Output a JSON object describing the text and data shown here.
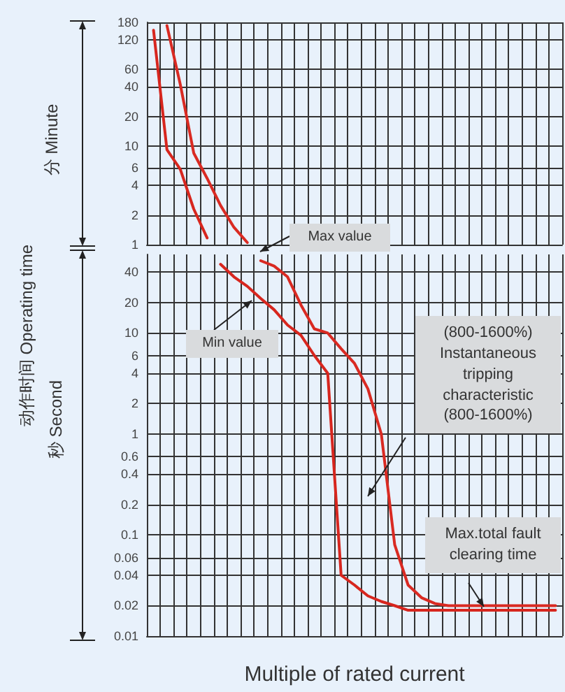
{
  "chart_data": [
    {
      "type": "line",
      "annotations": [
        "分 Minute"
      ],
      "categories": [
        null,
        null,
        null,
        null,
        null,
        null,
        null,
        null,
        null,
        null,
        null,
        null,
        null,
        null,
        null,
        null,
        null,
        null,
        null,
        null,
        null,
        null,
        null,
        null,
        null,
        null,
        null,
        null,
        null,
        null,
        null
      ],
      "series": [
        {
          "color": "#d7261e",
          "values": [
            150,
            9.2,
            5.8,
            2.3,
            1.17,
            null,
            null,
            null,
            null,
            null,
            null,
            null,
            null,
            null,
            null,
            null,
            null,
            null,
            null,
            null,
            null,
            null,
            null,
            null,
            null,
            null,
            null,
            null,
            null,
            null,
            null
          ]
        },
        {
          "color": "#d92a22",
          "values": [
            null,
            167,
            42,
            8.5,
            4.7,
            2.5,
            1.5,
            1.05,
            null,
            null,
            null,
            null,
            null,
            null,
            null,
            null,
            null,
            null,
            null,
            null,
            null,
            null,
            null,
            null,
            null,
            null,
            null,
            null,
            null,
            null,
            null
          ]
        }
      ],
      "log": "y",
      "ylim": [
        1,
        180
      ],
      "yticks": [
        180,
        120,
        60,
        40,
        20,
        10,
        6,
        4,
        2,
        1
      ],
      "grid": true,
      "tick_labels": "y",
      "marker": "none",
      "line_style": "solid"
    },
    {
      "type": "line",
      "xlabel": "Multiple of rated current",
      "ylabel": "动作时间 Operating time",
      "annotations": [
        "秒 Second",
        "Max value",
        "Min value",
        "(800-1600%) Instantaneous tripping characteristic (800-1600%)",
        "Max.total fault clearing time"
      ],
      "categories": [
        null,
        null,
        null,
        null,
        null,
        null,
        null,
        null,
        null,
        null,
        null,
        null,
        null,
        null,
        null,
        null,
        null,
        null,
        null,
        null,
        null,
        null,
        null,
        null,
        null,
        null,
        null,
        null,
        null,
        null,
        null
      ],
      "series": [
        {
          "color": "#d7261e",
          "values": [
            null,
            null,
            null,
            null,
            null,
            48,
            36,
            29,
            22,
            17,
            12,
            9.5,
            6,
            4,
            0.04,
            0.032,
            0.025,
            0.022,
            0.02,
            0.018,
            0.018,
            0.018,
            0.018,
            0.018,
            0.018,
            0.018,
            0.018,
            0.018,
            0.018,
            0.018,
            0.018
          ]
        },
        {
          "color": "#d92a22",
          "values": [
            null,
            null,
            null,
            null,
            null,
            null,
            null,
            null,
            52,
            46,
            36,
            19,
            11,
            10,
            7,
            5,
            2.8,
            1,
            0.08,
            0.032,
            0.024,
            0.021,
            0.02,
            0.02,
            0.02,
            0.02,
            0.02,
            0.02,
            0.02,
            0.02,
            0.02
          ]
        }
      ],
      "log": "y",
      "ylim": [
        0.01,
        60
      ],
      "yticks": [
        40,
        20,
        10,
        6,
        4,
        2,
        1,
        0.6,
        0.4,
        0.2,
        0.1,
        0.06,
        0.04,
        0.02,
        0.01
      ],
      "grid": true,
      "tick_labels": "y",
      "marker": "none",
      "line_style": "solid"
    }
  ]
}
